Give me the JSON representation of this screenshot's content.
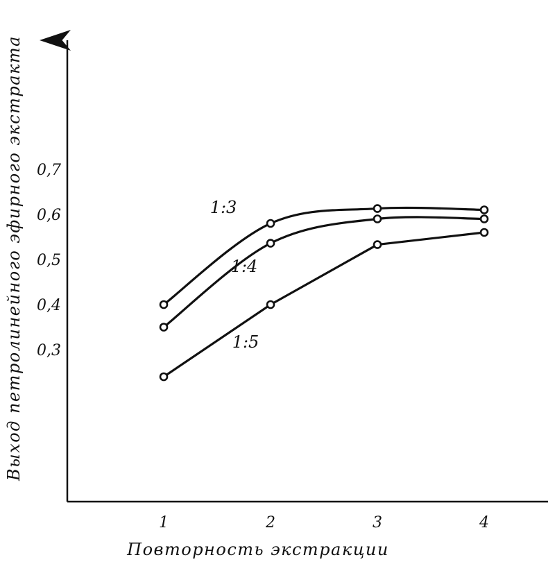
{
  "chart_data": {
    "type": "line",
    "xlabel": "Повторность экстракции",
    "ylabel": "Выход петролинейного эфирного экстракта",
    "x": [
      1,
      2,
      3,
      4
    ],
    "x_tick_labels": [
      "1",
      "2",
      "3",
      "4"
    ],
    "y_tick_labels": [
      "0,3",
      "0,4",
      "0,5",
      "0,6",
      "0,7"
    ],
    "y_ticks": [
      0.3,
      0.4,
      0.5,
      0.6,
      0.7
    ],
    "series": [
      {
        "name": "1:3",
        "values": [
          0.4,
          0.58,
          0.613,
          0.61
        ]
      },
      {
        "name": "1:4",
        "values": [
          0.35,
          0.536,
          0.59,
          0.59
        ]
      },
      {
        "name": "1:5",
        "values": [
          0.24,
          0.4,
          0.533,
          0.56
        ]
      }
    ],
    "grid": false,
    "legend": "labels on lines",
    "color": "#111111"
  }
}
